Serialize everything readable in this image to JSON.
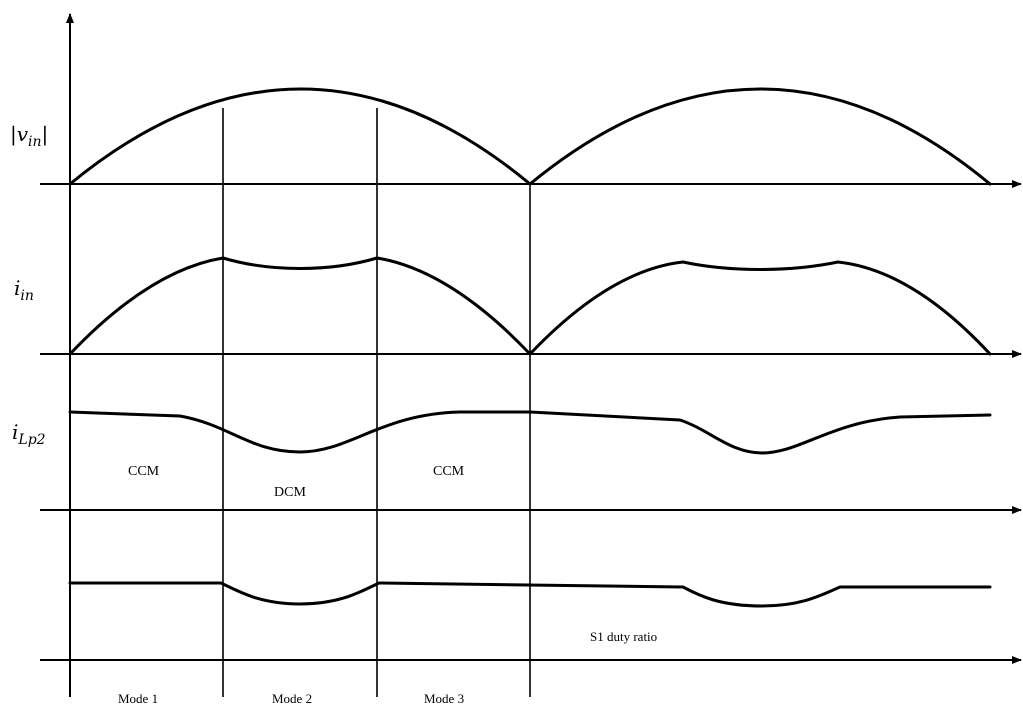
{
  "signal_labels": {
    "vin_abs": {
      "main": "|v",
      "sub": "in",
      "end": "|"
    },
    "iin": {
      "main": "i",
      "sub": "in"
    },
    "ilp2": {
      "main": "i",
      "sub": "Lp2"
    }
  },
  "region_labels": {
    "ccm_1": "CCM",
    "dcm": "DCM",
    "ccm_2": "CCM",
    "duty": "S1 duty ratio"
  },
  "mode_labels": [
    "Mode 1",
    "Mode 2",
    "Mode 3"
  ]
}
